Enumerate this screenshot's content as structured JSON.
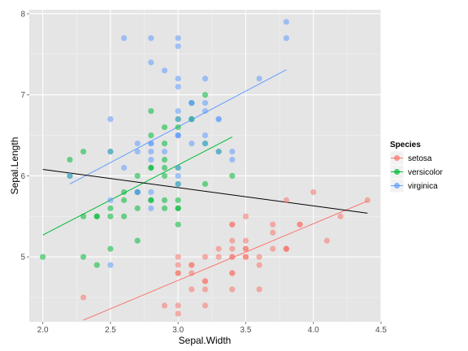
{
  "chart_data": {
    "type": "scatter",
    "xlabel": "Sepal.Width",
    "ylabel": "Sepal.Length",
    "xlim": [
      1.9,
      4.5
    ],
    "ylim": [
      4.2,
      8.05
    ],
    "x_ticks": [
      "2.0",
      "2.5",
      "3.0",
      "3.5",
      "4.0",
      "4.5"
    ],
    "y_ticks": [
      "5",
      "6",
      "7",
      "8"
    ],
    "grid": true,
    "legend_title": "Species",
    "legend_position": "right",
    "series": [
      {
        "name": "setosa",
        "color": "#F8766D",
        "points": [
          [
            3.5,
            5.1
          ],
          [
            3.0,
            4.9
          ],
          [
            3.2,
            4.7
          ],
          [
            3.1,
            4.6
          ],
          [
            3.6,
            5.0
          ],
          [
            3.9,
            5.4
          ],
          [
            3.4,
            4.6
          ],
          [
            3.4,
            5.0
          ],
          [
            2.9,
            4.4
          ],
          [
            3.1,
            4.9
          ],
          [
            3.7,
            5.4
          ],
          [
            3.4,
            4.8
          ],
          [
            3.0,
            4.8
          ],
          [
            3.0,
            4.3
          ],
          [
            4.0,
            5.8
          ],
          [
            4.4,
            5.7
          ],
          [
            3.9,
            5.4
          ],
          [
            3.5,
            5.1
          ],
          [
            3.8,
            5.7
          ],
          [
            3.8,
            5.1
          ],
          [
            3.4,
            5.4
          ],
          [
            3.7,
            5.1
          ],
          [
            3.6,
            4.6
          ],
          [
            3.3,
            5.1
          ],
          [
            3.4,
            4.8
          ],
          [
            3.0,
            5.0
          ],
          [
            3.4,
            5.0
          ],
          [
            3.5,
            5.2
          ],
          [
            3.4,
            5.2
          ],
          [
            3.2,
            4.7
          ],
          [
            3.1,
            4.8
          ],
          [
            3.4,
            5.4
          ],
          [
            4.1,
            5.2
          ],
          [
            4.2,
            5.5
          ],
          [
            3.1,
            4.9
          ],
          [
            3.2,
            5.0
          ],
          [
            3.5,
            5.5
          ],
          [
            3.6,
            4.9
          ],
          [
            3.0,
            4.4
          ],
          [
            3.4,
            5.1
          ],
          [
            3.5,
            5.0
          ],
          [
            2.3,
            4.5
          ],
          [
            3.2,
            4.4
          ],
          [
            3.5,
            5.0
          ],
          [
            3.8,
            5.1
          ],
          [
            3.0,
            4.8
          ],
          [
            3.8,
            5.1
          ],
          [
            3.2,
            4.6
          ],
          [
            3.7,
            5.3
          ],
          [
            3.3,
            5.0
          ]
        ],
        "trend": [
          [
            2.3,
            4.22
          ],
          [
            4.4,
            5.69
          ]
        ]
      },
      {
        "name": "versicolor",
        "color": "#00BA38",
        "points": [
          [
            3.2,
            7.0
          ],
          [
            3.2,
            6.4
          ],
          [
            3.1,
            6.9
          ],
          [
            2.3,
            5.5
          ],
          [
            2.8,
            6.5
          ],
          [
            2.8,
            5.7
          ],
          [
            3.3,
            6.3
          ],
          [
            2.4,
            4.9
          ],
          [
            2.9,
            6.6
          ],
          [
            2.7,
            5.2
          ],
          [
            2.0,
            5.0
          ],
          [
            3.0,
            5.9
          ],
          [
            2.2,
            6.0
          ],
          [
            2.9,
            6.1
          ],
          [
            2.9,
            5.6
          ],
          [
            3.1,
            6.7
          ],
          [
            3.0,
            5.6
          ],
          [
            2.7,
            5.8
          ],
          [
            2.2,
            6.2
          ],
          [
            2.5,
            5.6
          ],
          [
            3.2,
            5.9
          ],
          [
            2.8,
            6.1
          ],
          [
            2.5,
            6.3
          ],
          [
            2.8,
            6.1
          ],
          [
            2.9,
            6.4
          ],
          [
            3.0,
            6.6
          ],
          [
            2.8,
            6.8
          ],
          [
            3.0,
            6.7
          ],
          [
            2.9,
            6.0
          ],
          [
            2.6,
            5.7
          ],
          [
            2.4,
            5.5
          ],
          [
            2.4,
            5.5
          ],
          [
            2.7,
            5.8
          ],
          [
            2.7,
            6.0
          ],
          [
            3.0,
            5.4
          ],
          [
            3.4,
            6.0
          ],
          [
            3.1,
            6.7
          ],
          [
            2.3,
            6.3
          ],
          [
            3.0,
            5.6
          ],
          [
            2.5,
            5.5
          ],
          [
            2.6,
            5.5
          ],
          [
            3.0,
            6.1
          ],
          [
            2.6,
            5.8
          ],
          [
            2.3,
            5.0
          ],
          [
            2.7,
            5.6
          ],
          [
            3.0,
            5.7
          ],
          [
            2.9,
            5.7
          ],
          [
            2.9,
            6.2
          ],
          [
            2.5,
            5.1
          ],
          [
            2.8,
            5.7
          ]
        ],
        "trend": [
          [
            2.0,
            5.27
          ],
          [
            3.4,
            6.48
          ]
        ]
      },
      {
        "name": "virginica",
        "color": "#619CFF",
        "points": [
          [
            3.3,
            6.3
          ],
          [
            2.7,
            5.8
          ],
          [
            3.0,
            7.1
          ],
          [
            2.9,
            6.3
          ],
          [
            3.0,
            6.5
          ],
          [
            3.0,
            7.6
          ],
          [
            2.5,
            4.9
          ],
          [
            2.9,
            7.3
          ],
          [
            2.5,
            6.7
          ],
          [
            3.6,
            7.2
          ],
          [
            3.2,
            6.5
          ],
          [
            2.7,
            6.4
          ],
          [
            3.0,
            6.8
          ],
          [
            2.5,
            5.7
          ],
          [
            2.8,
            5.8
          ],
          [
            3.2,
            6.4
          ],
          [
            3.0,
            6.5
          ],
          [
            3.8,
            7.7
          ],
          [
            2.6,
            7.7
          ],
          [
            2.2,
            6.0
          ],
          [
            3.2,
            6.9
          ],
          [
            2.8,
            5.6
          ],
          [
            2.8,
            7.7
          ],
          [
            2.7,
            6.3
          ],
          [
            3.3,
            6.7
          ],
          [
            3.2,
            7.2
          ],
          [
            2.8,
            6.2
          ],
          [
            3.0,
            6.1
          ],
          [
            2.8,
            6.4
          ],
          [
            3.0,
            7.2
          ],
          [
            2.8,
            7.4
          ],
          [
            3.8,
            7.9
          ],
          [
            2.8,
            6.4
          ],
          [
            2.8,
            6.3
          ],
          [
            2.6,
            6.1
          ],
          [
            3.0,
            7.7
          ],
          [
            3.4,
            6.3
          ],
          [
            3.1,
            6.4
          ],
          [
            3.0,
            6.0
          ],
          [
            3.1,
            6.9
          ],
          [
            3.1,
            6.7
          ],
          [
            3.1,
            6.9
          ],
          [
            2.7,
            5.8
          ],
          [
            3.2,
            6.8
          ],
          [
            3.3,
            6.7
          ],
          [
            3.0,
            6.7
          ],
          [
            2.5,
            6.3
          ],
          [
            3.0,
            6.5
          ],
          [
            3.4,
            6.2
          ],
          [
            3.0,
            5.9
          ]
        ],
        "trend": [
          [
            2.2,
            5.9
          ],
          [
            3.8,
            7.31
          ]
        ]
      }
    ],
    "overall_trend": {
      "color": "#000000",
      "points": [
        [
          2.0,
          6.08
        ],
        [
          4.4,
          5.54
        ]
      ]
    }
  }
}
